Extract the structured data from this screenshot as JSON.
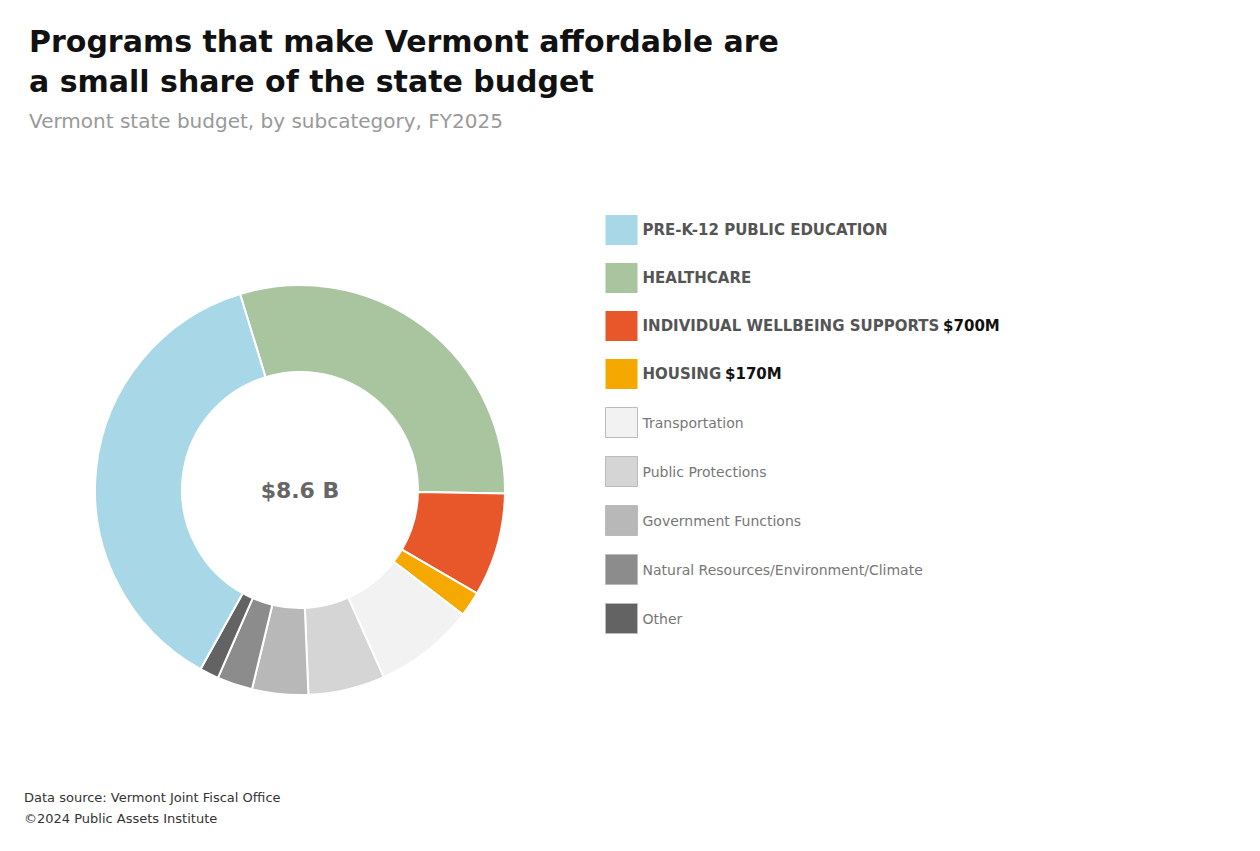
{
  "chart_data": {
    "type": "donut",
    "title": "Programs that make Vermont affordable are\na small share of the state budget",
    "subtitle": "Vermont state budget, by subcategory, FY2025",
    "center_label": "$8.6 B",
    "categories": [
      "HEALTHCARE",
      "INDIVIDUAL WELLBEING SUPPORTS",
      "HOUSING",
      "Transportation",
      "Public Protections",
      "Government Functions",
      "Natural Resources/Environment/Climate",
      "Other",
      "PRE-K-12 PUBLIC EDUCATION"
    ],
    "values": [
      2580,
      700,
      170,
      680,
      520,
      380,
      240,
      130,
      3200
    ],
    "value_labels": [
      null,
      "$700M",
      "$170M",
      null,
      null,
      null,
      null,
      null,
      null
    ],
    "colors": [
      "#a8c5a0",
      "#e8572a",
      "#f5a800",
      "#f2f2f2",
      "#d5d5d5",
      "#b8b8b8",
      "#8c8c8c",
      "#636363",
      "#a8d8e8"
    ],
    "highlight": [
      true,
      true,
      true,
      false,
      false,
      false,
      false,
      false,
      true
    ],
    "legend": "right",
    "legend_order": [
      "PRE-K-12 PUBLIC EDUCATION",
      "HEALTHCARE",
      "INDIVIDUAL WELLBEING SUPPORTS",
      "HOUSING",
      "Transportation",
      "Public Protections",
      "Government Functions",
      "Natural Resources/Environment/Climate",
      "Other"
    ],
    "footnote": [
      "Data source: Vermont Joint Fiscal Office",
      "©2024 Public Assets Institute"
    ]
  }
}
